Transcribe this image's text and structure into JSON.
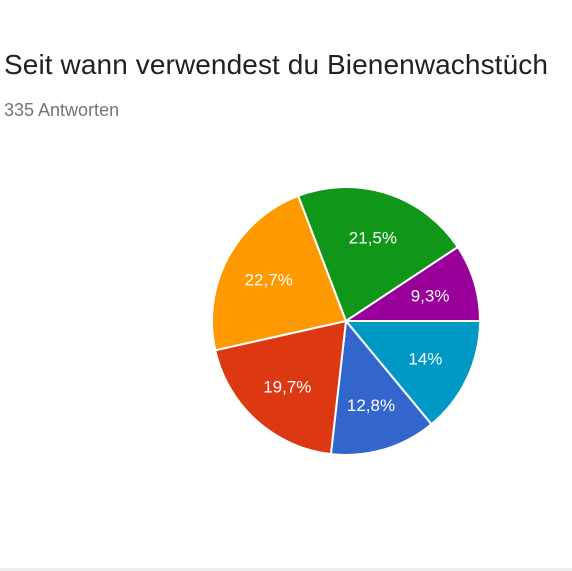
{
  "title": "Seit wann verwendest du Bienenwachstüch",
  "subtitle": "335 Antworten",
  "chart_data": {
    "type": "pie",
    "title": "Seit wann verwendest du Bienenwachstüch",
    "slices": [
      {
        "label": "14%",
        "value": 14.0,
        "color": "#0099C6"
      },
      {
        "label": "12,8%",
        "value": 12.8,
        "color": "#3366CC"
      },
      {
        "label": "19,7%",
        "value": 19.7,
        "color": "#DC3912"
      },
      {
        "label": "22,7%",
        "value": 22.7,
        "color": "#FF9900"
      },
      {
        "label": "21,5%",
        "value": 21.5,
        "color": "#109618"
      },
      {
        "label": "9,3%",
        "value": 9.3,
        "color": "#990099"
      }
    ]
  }
}
